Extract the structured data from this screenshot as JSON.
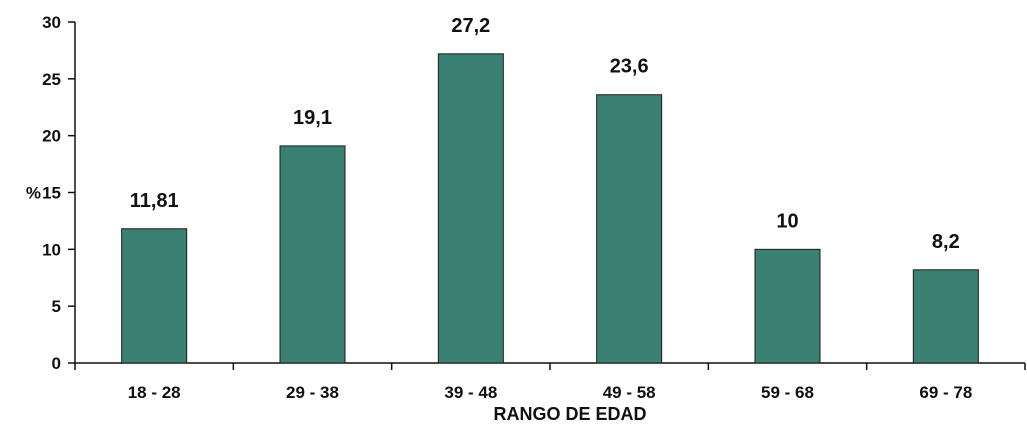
{
  "chart_data": {
    "type": "bar",
    "categories": [
      "18 - 28",
      "29 - 38",
      "39 - 48",
      "49 - 58",
      "59 - 68",
      "69 - 78"
    ],
    "values": [
      11.81,
      19.1,
      27.2,
      23.6,
      10,
      8.2
    ],
    "data_labels": [
      "11,81",
      "19,1",
      "27,2",
      "23,6",
      "10",
      "8,2"
    ],
    "title": "",
    "xlabel": "RANGO DE EDAD",
    "ylabel": "%",
    "ylim": [
      0,
      30
    ],
    "yticks": [
      0,
      5,
      10,
      15,
      20,
      25,
      30
    ],
    "grid": false,
    "legend": "none",
    "colors": {
      "bar": "#3a8073",
      "axis": "#111111",
      "text": "#111111"
    }
  }
}
